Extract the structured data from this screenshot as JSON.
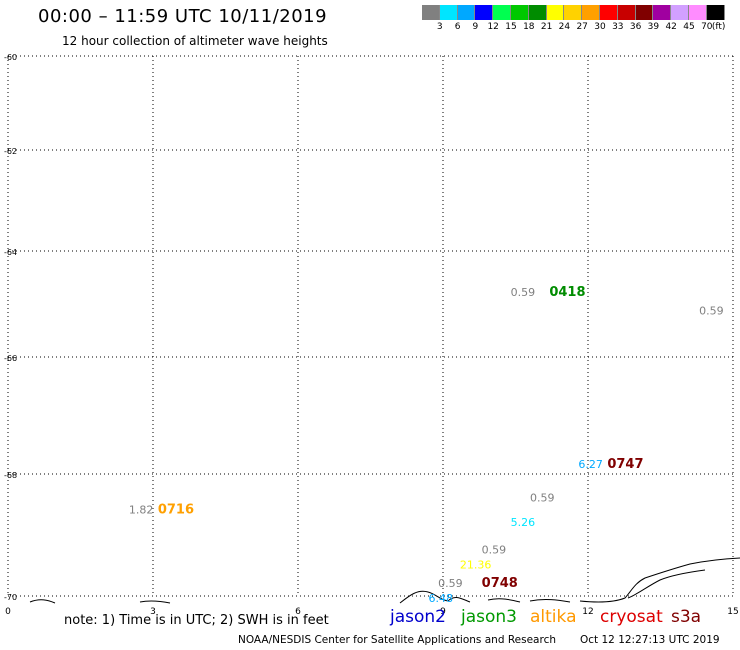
{
  "header": {
    "title": "00:00 – 11:59 UTC 10/11/2019",
    "subtitle": "12 hour collection of altimeter wave heights"
  },
  "colorbar": {
    "colors": [
      "#808080",
      "#00e5ff",
      "#00a8ff",
      "#0000ff",
      "#00ff50",
      "#00c800",
      "#008c00",
      "#ffff00",
      "#ffd200",
      "#ffa000",
      "#ff0000",
      "#c80000",
      "#800000",
      "#a000a0",
      "#d2a0ff",
      "#ff8cff",
      "#000000"
    ],
    "labels": [
      "3",
      "6",
      "9",
      "12",
      "15",
      "18",
      "21",
      "24",
      "27",
      "30",
      "33",
      "36",
      "39",
      "42",
      "45",
      "70",
      "(ft)"
    ]
  },
  "map": {
    "lon_ticks": [
      "0",
      "3",
      "6",
      "9",
      "12",
      "15"
    ],
    "lat_ticks": [
      "-60",
      "-62",
      "-64",
      "-66",
      "-68",
      "-70"
    ],
    "lon_range": [
      0,
      15
    ],
    "lat_range": [
      -60,
      -70
    ],
    "grid": "dotted",
    "annotations": [
      {
        "text": "0.59",
        "lon": 10.4,
        "lat": -64.85,
        "color": "#808080"
      },
      {
        "text": "0418",
        "lon": 11.2,
        "lat": -64.85,
        "color": "#008c00",
        "bold": true
      },
      {
        "text": "0.59",
        "lon": 14.3,
        "lat": -65.2,
        "color": "#808080"
      },
      {
        "text": "6.27",
        "lon": 11.8,
        "lat": -67.9,
        "color": "#00a8ff"
      },
      {
        "text": "0747",
        "lon": 12.4,
        "lat": -67.9,
        "color": "#800000",
        "bold": true
      },
      {
        "text": "1.82",
        "lon": 2.5,
        "lat": -68.65,
        "color": "#808080"
      },
      {
        "text": "0716",
        "lon": 3.1,
        "lat": -68.65,
        "color": "#ffa000",
        "bold": true
      },
      {
        "text": "0.59",
        "lon": 10.8,
        "lat": -68.45,
        "color": "#808080"
      },
      {
        "text": "5.26",
        "lon": 10.4,
        "lat": -68.85,
        "color": "#00e5ff"
      },
      {
        "text": "0.59",
        "lon": 9.8,
        "lat": -69.3,
        "color": "#808080"
      },
      {
        "text": "21.36",
        "lon": 9.35,
        "lat": -69.55,
        "color": "#ffff00"
      },
      {
        "text": "0.59",
        "lon": 8.9,
        "lat": -69.85,
        "color": "#808080"
      },
      {
        "text": "0748",
        "lon": 9.8,
        "lat": -69.85,
        "color": "#800000",
        "bold": true
      },
      {
        "text": "6.48",
        "lon": 8.7,
        "lat": -70.1,
        "color": "#00a8ff"
      }
    ]
  },
  "footer": {
    "note": "note: 1) Time is in UTC; 2) SWH is in feet",
    "satellites": [
      {
        "name": "jason2",
        "color": "#0000cc"
      },
      {
        "name": "jason3",
        "color": "#009900"
      },
      {
        "name": "altika",
        "color": "#ff9900"
      },
      {
        "name": "cryosat",
        "color": "#dd0000"
      },
      {
        "name": "s3a",
        "color": "#800000"
      }
    ],
    "credit": "NOAA/NESDIS Center for Satellite Applications and Research",
    "stamp": "Oct 12 12:27:13 UTC 2019"
  }
}
